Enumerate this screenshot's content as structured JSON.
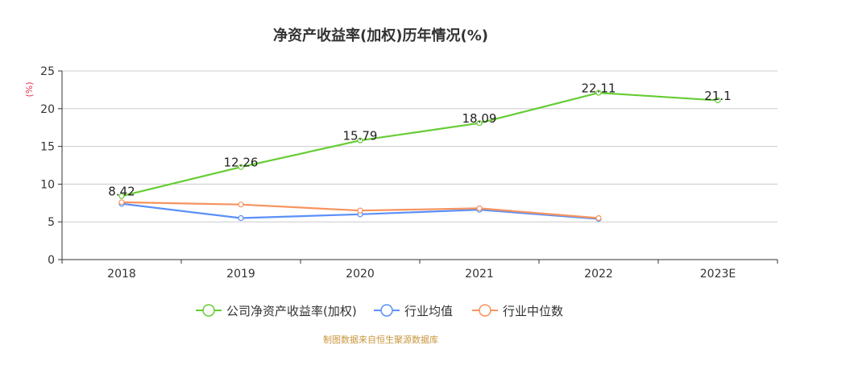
{
  "source_note": "制图数据来自恒生聚源数据库",
  "colors": {
    "grid": "#cccccc",
    "axis": "#333333",
    "ylabel": "#e8334a"
  },
  "chart_data": {
    "type": "line",
    "title": "净资产收益率(加权)历年情况(%)",
    "ylabel": "(%)",
    "xlabel": "",
    "categories": [
      "2018",
      "2019",
      "2020",
      "2021",
      "2022",
      "2023E"
    ],
    "ylim": [
      0,
      25
    ],
    "yticks": [
      0,
      5,
      10,
      15,
      20,
      25
    ],
    "grid": true,
    "legend_position": "bottom",
    "series": [
      {
        "name": "公司净资产收益率(加权)",
        "color": "#66cc33",
        "values": [
          8.42,
          12.26,
          15.79,
          18.09,
          22.11,
          21.1
        ],
        "labels": [
          "8.42",
          "12.26",
          "15.79",
          "18.09",
          "22.11",
          "21.1"
        ]
      },
      {
        "name": "行业均值",
        "color": "#5b8ff9",
        "values": [
          7.4,
          5.5,
          6.0,
          6.6,
          5.4,
          null
        ],
        "labels": null
      },
      {
        "name": "行业中位数",
        "color": "#f7935f",
        "values": [
          7.6,
          7.3,
          6.5,
          6.8,
          5.5,
          null
        ],
        "labels": null
      }
    ]
  }
}
